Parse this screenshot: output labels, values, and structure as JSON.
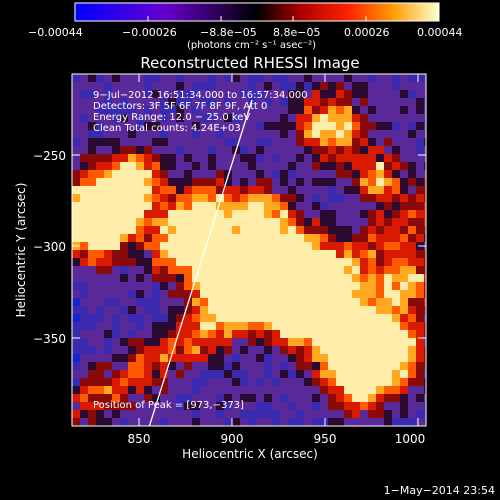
{
  "colorbar": {
    "ticks": [
      "−0.00044",
      "−0.00026",
      "−8.8e−05",
      "8.8e−05",
      "0.00026",
      "0.00044"
    ],
    "units": "(photons cm⁻² s⁻¹ asec⁻²)"
  },
  "plot": {
    "title": "Reconstructed RHESSI Image",
    "xlabel": "Heliocentric X (arcsec)",
    "ylabel": "Heliocentric Y (arcsec)",
    "xticks": [
      "850",
      "900",
      "950",
      "1000"
    ],
    "yticks": [
      "−250",
      "−300",
      "−350"
    ],
    "xrange": [
      813,
      1003
    ],
    "yrange": [
      -398,
      -205
    ]
  },
  "annotations": {
    "time_range": "9−Jul−2012 16:51:34.000 to 16:57:34.000",
    "detectors": "Detectors: 3F 5F 6F 7F 8F 9F, Att 0",
    "energy": "Energy Range: 12.0 − 25.0 keV",
    "clean": "Clean    Total counts: 4.24E+03",
    "peak": "Position of Peak = [973,−373]"
  },
  "footer": {
    "date": "1−May−2014 23:54"
  },
  "colors": {
    "background": "#000000",
    "text": "#ffffff",
    "limb": "#ffffff"
  }
}
